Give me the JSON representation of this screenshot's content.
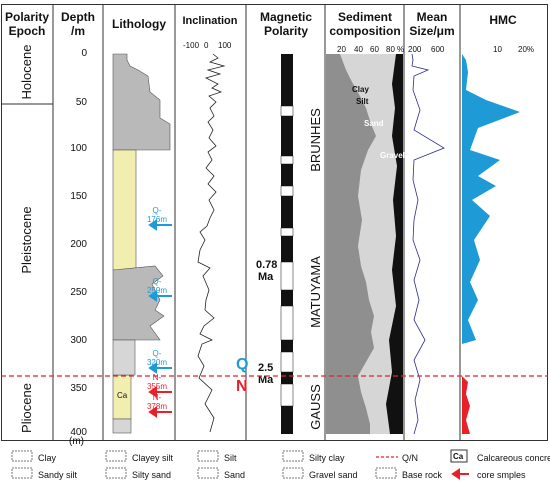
{
  "headers": {
    "polarity_epoch": [
      "Polarity",
      "Epoch"
    ],
    "depth": [
      "Depth",
      "/m"
    ],
    "lithology": "Lithology",
    "inclination": "Inclination",
    "magnetic_polarity": [
      "Magnetic",
      "Polarity"
    ],
    "sediment_composition": [
      "Sediment",
      "composition"
    ],
    "mean_size": [
      "Mean",
      "Size/μm"
    ],
    "hmc": "HMC"
  },
  "epochs": [
    "Holocene",
    "Pleistocene",
    "Pliocene"
  ],
  "depth_ticks": [
    "0",
    "50",
    "100",
    "150",
    "200",
    "250",
    "300",
    "350",
    "400"
  ],
  "depth_unit": "(m)",
  "inclination_ticks": [
    "-100",
    "0",
    "100"
  ],
  "sediment_ticks": [
    "20",
    "40",
    "60",
    "80",
    "%"
  ],
  "mean_size_ticks": [
    "200",
    "600"
  ],
  "hmc_ticks": [
    "10",
    "20%"
  ],
  "sediment_labels": [
    "Clay",
    "Silt",
    "Sand",
    "Gravel"
  ],
  "chrons": [
    "BRUNHES",
    "MATUYAMA",
    "GAUSS"
  ],
  "ages": [
    "0.78",
    "Ma",
    "2.5",
    "Ma"
  ],
  "qn": {
    "q": "Q",
    "n": "N"
  },
  "samples": [
    {
      "line1": "Q-",
      "line2": "176m",
      "color": "#1e9ad6"
    },
    {
      "line1": "Q-",
      "line2": "259m",
      "color": "#1e9ad6"
    },
    {
      "line1": "Q-",
      "line2": "320m",
      "color": "#1e9ad6"
    },
    {
      "line1": "N-",
      "line2": "355m",
      "color": "#e8202a"
    },
    {
      "line1": "N-",
      "line2": "378m",
      "color": "#e8202a"
    }
  ],
  "ca_label": "Ca",
  "legend": [
    "Clay",
    "Clayey silt",
    "Silt",
    "Silty clay",
    "Q/N",
    "Calcareous concretion",
    "Sandy silt",
    "Silty sand",
    "Sand",
    "Gravel sand",
    "Base rock",
    "core smples"
  ],
  "legend_ca": "Ca",
  "colors": {
    "clay": "#b9b9b9",
    "silt": "#d6d6d6",
    "gravel": "#8f8f8f",
    "sand_yellow": "#f2eeb0",
    "hmc_blue": "#1e9ad6",
    "hmc_red": "#e8202a",
    "qn_line": "#e8202a"
  }
}
